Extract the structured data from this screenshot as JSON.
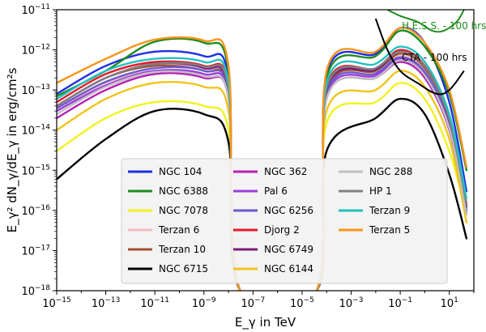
{
  "chart_data": {
    "type": "line",
    "xlabel": "E_γ in TeV",
    "ylabel": "E_γ² dN_γ/dE_γ in erg/cm²s",
    "x_scale": "log",
    "y_scale": "log",
    "xlim": [
      1e-15,
      100.0
    ],
    "ylim": [
      1e-18,
      1e-11
    ],
    "x_ticks": [
      -15,
      -13,
      -11,
      -9,
      -7,
      -5,
      -3,
      -1,
      1
    ],
    "y_ticks": [
      -18,
      -17,
      -16,
      -15,
      -14,
      -13,
      -12,
      -11
    ],
    "grid": false,
    "legend_placement": "lower-center",
    "legend_columns": 3,
    "series": [
      {
        "name": "NGC 104",
        "color": "#1f2ee6",
        "x": [
          1e-15,
          1e-13,
          1e-11,
          1e-09,
          1e-08,
          3e-08,
          4e-05,
          0.0001,
          0.01,
          0.1,
          1,
          10,
          50
        ],
        "y": [
          8e-14,
          4e-13,
          9e-13,
          7e-13,
          2e-13,
          1e-18,
          1e-18,
          2.5e-13,
          8e-13,
          3.5e-12,
          1.5e-12,
          5e-14,
          3e-16
        ]
      },
      {
        "name": "NGC 6388",
        "color": "#1e8b1e",
        "x": [
          1e-15,
          1e-13,
          1e-11,
          1e-09,
          1e-08,
          3e-08,
          4e-05,
          0.0001,
          0.01,
          0.1,
          1,
          10,
          50
        ],
        "y": [
          7e-14,
          3e-13,
          1.6e-12,
          1.5e-12,
          3e-13,
          1e-18,
          1e-18,
          2e-13,
          7e-13,
          3e-12,
          1.2e-12,
          8e-14,
          1e-15
        ]
      },
      {
        "name": "NGC 7078",
        "color": "#f2f21e",
        "x": [
          1e-15,
          1e-13,
          1e-11,
          1e-09,
          1e-08,
          3e-08,
          4e-05,
          0.0001,
          0.01,
          0.1,
          1,
          10,
          50
        ],
        "y": [
          3e-15,
          2e-14,
          5e-14,
          4e-14,
          1e-14,
          1e-18,
          1e-18,
          1.5e-14,
          5e-14,
          1.5e-13,
          6e-14,
          3e-15,
          8e-17
        ]
      },
      {
        "name": "Terzan 6",
        "color": "#f5b8c4",
        "x": [
          1e-15,
          1e-13,
          1e-11,
          1e-09,
          1e-08,
          3e-08,
          4e-05,
          0.0001,
          0.01,
          0.1,
          1,
          10,
          50
        ],
        "y": [
          3e-14,
          1.5e-13,
          3e-13,
          2.5e-13,
          8e-14,
          1e-18,
          1e-18,
          8e-14,
          2.5e-13,
          7e-13,
          3e-13,
          1.5e-14,
          1e-16
        ]
      },
      {
        "name": "Terzan 10",
        "color": "#a0522d",
        "x": [
          1e-15,
          1e-13,
          1e-11,
          1e-09,
          1e-08,
          3e-08,
          4e-05,
          0.0001,
          0.01,
          0.1,
          1,
          10,
          50
        ],
        "y": [
          4e-14,
          2e-13,
          4e-13,
          3e-13,
          9e-14,
          1e-18,
          1e-18,
          9e-14,
          3e-13,
          8e-13,
          3.5e-13,
          1.8e-14,
          1.2e-16
        ]
      },
      {
        "name": "NGC 6715",
        "color": "#000000",
        "x": [
          1e-15,
          1e-13,
          1e-11,
          1e-09,
          1e-08,
          3e-08,
          4e-05,
          0.0001,
          0.01,
          0.1,
          1,
          10,
          50
        ],
        "y": [
          6e-16,
          6e-15,
          3e-14,
          2.5e-14,
          5e-15,
          1e-18,
          1e-18,
          3e-15,
          2e-14,
          6e-14,
          2.5e-14,
          8e-16,
          2e-17
        ]
      },
      {
        "name": "NGC 362",
        "color": "#b51fb5",
        "x": [
          1e-15,
          1e-13,
          1e-11,
          1e-09,
          1e-08,
          3e-08,
          4e-05,
          0.0001,
          0.01,
          0.1,
          1,
          10,
          50
        ],
        "y": [
          2e-14,
          1e-13,
          2.5e-13,
          2e-13,
          6e-14,
          1e-18,
          1e-18,
          6e-14,
          2e-13,
          5e-13,
          2e-13,
          1e-14,
          8e-17
        ]
      },
      {
        "name": "Pal 6",
        "color": "#9a3fdd",
        "x": [
          1e-15,
          1e-13,
          1e-11,
          1e-09,
          1e-08,
          3e-08,
          4e-05,
          0.0001,
          0.01,
          0.1,
          1,
          10,
          50
        ],
        "y": [
          3e-14,
          1.3e-13,
          3e-13,
          2.5e-13,
          7e-14,
          1e-18,
          1e-18,
          7e-14,
          2.3e-13,
          6e-13,
          2.5e-13,
          1.2e-14,
          9e-17
        ]
      },
      {
        "name": "NGC 6256",
        "color": "#6a5acd",
        "x": [
          1e-15,
          1e-13,
          1e-11,
          1e-09,
          1e-08,
          3e-08,
          4e-05,
          0.0001,
          0.01,
          0.1,
          1,
          10,
          50
        ],
        "y": [
          3.5e-14,
          1.6e-13,
          3.5e-13,
          3e-13,
          8e-14,
          1e-18,
          1e-18,
          8e-14,
          2.6e-13,
          6.5e-13,
          2.8e-13,
          1.4e-14,
          1e-16
        ]
      },
      {
        "name": "Djorg 2",
        "color": "#e8192c",
        "x": [
          1e-15,
          1e-13,
          1e-11,
          1e-09,
          1e-08,
          3e-08,
          4e-05,
          0.0001,
          0.01,
          0.1,
          1,
          10,
          50
        ],
        "y": [
          5e-14,
          2.5e-13,
          5e-13,
          4e-13,
          1.2e-13,
          1e-18,
          1e-18,
          1.2e-13,
          3.5e-13,
          1e-12,
          4e-13,
          2e-14,
          1.5e-16
        ]
      },
      {
        "name": "NGC 6749",
        "color": "#7b1a7b",
        "x": [
          1e-15,
          1e-13,
          1e-11,
          1e-09,
          1e-08,
          3e-08,
          4e-05,
          0.0001,
          0.01,
          0.1,
          1,
          10,
          50
        ],
        "y": [
          4e-14,
          2e-13,
          4.5e-13,
          3.5e-13,
          1e-13,
          1e-18,
          1e-18,
          1e-13,
          3.2e-13,
          9e-13,
          3.8e-13,
          1.8e-14,
          1.3e-16
        ]
      },
      {
        "name": "NGC 6144",
        "color": "#f0c419",
        "x": [
          1e-15,
          1e-13,
          1e-11,
          1e-09,
          1e-08,
          3e-08,
          4e-05,
          0.0001,
          0.01,
          0.1,
          1,
          10,
          50
        ],
        "y": [
          1e-14,
          6e-14,
          1.5e-13,
          1.2e-13,
          3e-14,
          1e-18,
          1e-18,
          3e-14,
          1e-13,
          3e-13,
          1.2e-13,
          6e-15,
          5e-17
        ]
      },
      {
        "name": "NGC 288",
        "color": "#c0c0c0",
        "x": [
          1e-15,
          1e-13,
          1e-11,
          1e-09,
          1e-08,
          3e-08,
          4e-05,
          0.0001,
          0.01,
          0.1,
          1,
          10,
          50
        ],
        "y": [
          2.5e-14,
          1.2e-13,
          2.8e-13,
          2.2e-13,
          6e-14,
          1e-18,
          1e-18,
          6e-14,
          2e-13,
          5.5e-13,
          2.3e-13,
          1.1e-14,
          8e-17
        ]
      },
      {
        "name": "HP 1",
        "color": "#808080",
        "x": [
          1e-15,
          1e-13,
          1e-11,
          1e-09,
          1e-08,
          3e-08,
          4e-05,
          0.0001,
          0.01,
          0.1,
          1,
          10,
          50
        ],
        "y": [
          4e-14,
          2e-13,
          4.5e-13,
          3.8e-13,
          1.1e-13,
          1e-18,
          1e-18,
          1.1e-13,
          3.5e-13,
          9e-13,
          3.8e-13,
          1.9e-14,
          1.4e-16
        ]
      },
      {
        "name": "Terzan 9",
        "color": "#20c2c2",
        "x": [
          1e-15,
          1e-13,
          1e-11,
          1e-09,
          1e-08,
          3e-08,
          4e-05,
          0.0001,
          0.01,
          0.1,
          1,
          10,
          50
        ],
        "y": [
          6e-14,
          3e-13,
          6e-13,
          5e-13,
          1.5e-13,
          1e-18,
          1e-18,
          1.5e-13,
          4.5e-13,
          1.2e-12,
          5e-13,
          2.5e-14,
          2e-16
        ]
      },
      {
        "name": "Terzan 5",
        "color": "#f7941d",
        "x": [
          1e-15,
          1e-13,
          1e-11,
          1e-09,
          1e-08,
          3e-08,
          4e-05,
          0.0001,
          0.01,
          0.1,
          1,
          10,
          50
        ],
        "y": [
          1.5e-13,
          6e-13,
          1.8e-12,
          1.7e-12,
          4e-13,
          1e-18,
          1e-18,
          3e-13,
          9e-13,
          3.5e-12,
          1.5e-12,
          1e-13,
          1.2e-15
        ]
      }
    ],
    "sensitivity_curves": [
      {
        "label": "H.E.S.S. - 100 hrs",
        "color": "#1e8b1e",
        "x": [
          0.03,
          0.1,
          0.5,
          2,
          6,
          20,
          40
        ],
        "y": [
          1e-11,
          7e-12,
          5e-12,
          3e-12,
          3e-12,
          5e-12,
          1e-11
        ]
      },
      {
        "label": "CTA - 100 hrs",
        "color": "#000000",
        "x": [
          0.01,
          0.03,
          0.1,
          0.5,
          3,
          10,
          40
        ],
        "y": [
          6e-12,
          1e-12,
          3e-13,
          1.5e-13,
          8e-14,
          1e-13,
          3e-13
        ]
      }
    ]
  }
}
